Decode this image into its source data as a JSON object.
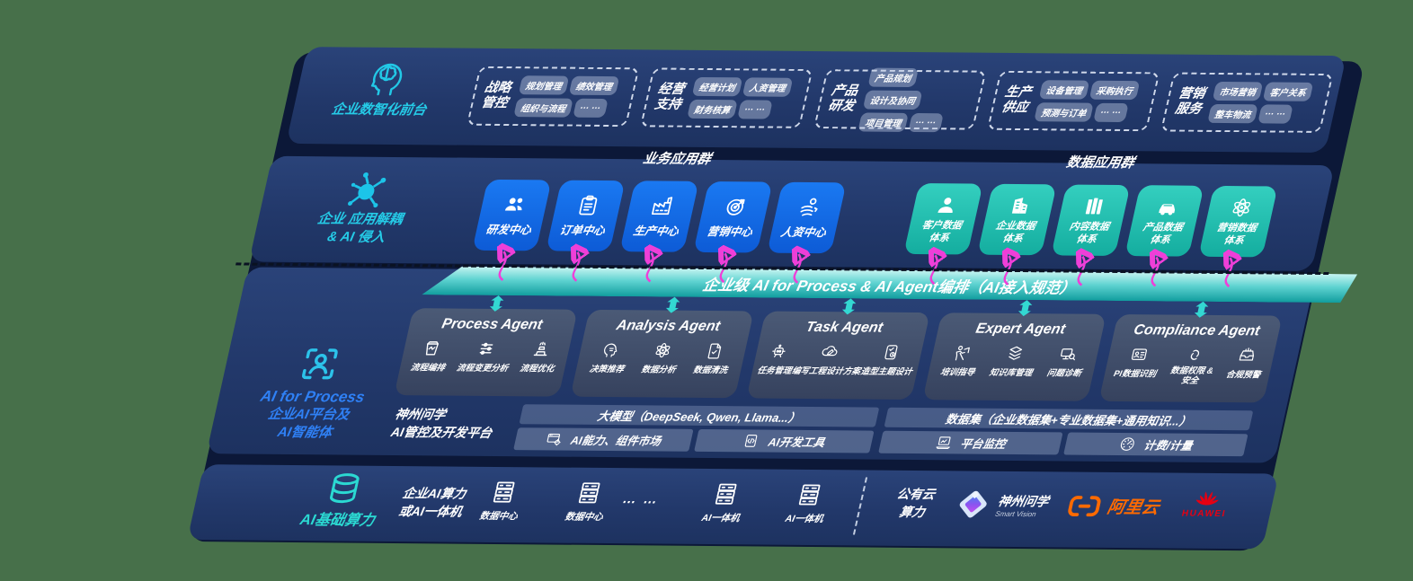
{
  "colors": {
    "canvas_background": "#47704a",
    "band_navy": "#22386a",
    "band_edge_dark": "#0c1838",
    "accent_cyan": "#25cbe7",
    "accent_blue": "#2f80f5",
    "accent_teal": "#2bd9d2",
    "blue_box": "#0f6be8",
    "teal_box": "#27c5b5",
    "banner_teal": "#14a5a4",
    "magenta_arrow": "#ee3fd8",
    "aliyun_orange": "#ff6a00",
    "huawei_red": "#e60012"
  },
  "front_office": {
    "label": "企业数智化前台",
    "icon": "head-brain-icon",
    "groups": [
      {
        "title": "战略管控",
        "chips": [
          "规划管理",
          "绩效管理",
          "组织与流程",
          "… …"
        ]
      },
      {
        "title": "经营支持",
        "chips": [
          "经营计划",
          "人资管理",
          "财务核算",
          "… …"
        ]
      },
      {
        "title": "产品研发",
        "chips": [
          "产品规划",
          "设计及协同",
          "项目管理",
          "… …"
        ]
      },
      {
        "title": "生产供应",
        "chips": [
          "设备管理",
          "采购执行",
          "预测与订单",
          "… …"
        ]
      },
      {
        "title": "营销服务",
        "chips": [
          "市场营销",
          "客户关系",
          "整车物流",
          "… …"
        ]
      }
    ]
  },
  "app_layer": {
    "label_line1": "企业 应用解耦",
    "label_line2": "& AI 侵入",
    "icon": "neuron-icon",
    "business_group": {
      "title": "业务应用群",
      "boxes": [
        {
          "label": "研发中心",
          "icon": "team-icon"
        },
        {
          "label": "订单中心",
          "icon": "clipboard-icon"
        },
        {
          "label": "生产中心",
          "icon": "factory-icon"
        },
        {
          "label": "营销中心",
          "icon": "target-icon"
        },
        {
          "label": "人资中心",
          "icon": "person-motion-icon"
        }
      ]
    },
    "data_group": {
      "title": "数据应用群",
      "boxes": [
        {
          "label": "客户数据体系",
          "icon": "user-icon"
        },
        {
          "label": "企业数据体系",
          "icon": "building-icon"
        },
        {
          "label": "内容数据体系",
          "icon": "books-icon"
        },
        {
          "label": "产品数据体系",
          "icon": "car-icon"
        },
        {
          "label": "营销数据体系",
          "icon": "atom-icon"
        }
      ]
    }
  },
  "ai_platform_layer": {
    "label_en": "AI for Process",
    "label_zh_line1": "企业AI平台及",
    "label_zh_line2": "AI智能体",
    "icon": "person-scan-icon",
    "banner": "企业级 AI for Process & AI Agent编排（AI接入规范）",
    "agents": [
      {
        "title": "Process Agent",
        "items": [
          {
            "label": "流程编排",
            "icon": "workflow-icon"
          },
          {
            "label": "流程变更分析",
            "icon": "sliders-icon"
          },
          {
            "label": "流程优化",
            "icon": "optimize-icon"
          }
        ]
      },
      {
        "title": "Analysis Agent",
        "items": [
          {
            "label": "决策推荐",
            "icon": "head-idea-icon"
          },
          {
            "label": "数据分析",
            "icon": "atom-icon"
          },
          {
            "label": "数据清洗",
            "icon": "doc-clean-icon"
          }
        ]
      },
      {
        "title": "Task Agent",
        "items": [
          {
            "label": "任务管理",
            "icon": "robot-icon"
          },
          {
            "label": "编写工程设计方案",
            "icon": "cloud-edit-icon"
          },
          {
            "label": "造型主题设计",
            "icon": "design-card-icon"
          }
        ]
      },
      {
        "title": "Expert Agent",
        "items": [
          {
            "label": "培训指导",
            "icon": "training-icon"
          },
          {
            "label": "知识库管理",
            "icon": "layers-icon"
          },
          {
            "label": "问题诊断",
            "icon": "diagnose-icon"
          }
        ]
      },
      {
        "title": "Compliance Agent",
        "items": [
          {
            "label": "PI数据识别",
            "icon": "id-card-icon"
          },
          {
            "label": "数据权限 & 安全",
            "icon": "permission-icon"
          },
          {
            "label": "合规预警",
            "icon": "alert-mail-icon"
          }
        ]
      }
    ],
    "platform": {
      "name_line1": "神州问学",
      "name_line2": "AI管控及开发平台",
      "model_bar": "大模型（DeepSeek, Qwen, Llama...）",
      "dataset_bar": "数据集（企业数据集+专业数据集+通用知识...）",
      "cells": [
        {
          "label": "AI能力、组件市场",
          "icon": "components-icon"
        },
        {
          "label": "AI开发工具",
          "icon": "devtools-icon"
        },
        {
          "label": "平台监控",
          "icon": "monitor-icon"
        },
        {
          "label": "计费/计量",
          "icon": "gauge-icon"
        }
      ]
    }
  },
  "infra_layer": {
    "label": "AI基础算力",
    "icon": "database-icon",
    "compute_line1": "企业AI算力",
    "compute_line2": "或AI一体机",
    "nodes": [
      {
        "label": "数据中心",
        "icon": "server-icon"
      },
      {
        "label": "数据中心",
        "icon": "server-icon"
      },
      {
        "label": "AI一体机",
        "icon": "server-icon"
      },
      {
        "label": "AI一体机",
        "icon": "server-icon"
      }
    ],
    "ellipsis": "… …",
    "cloud_line1": "公有云",
    "cloud_line2": "算力",
    "vendors": {
      "smartvision": {
        "name": "神州问学",
        "sub": "Smart Vision",
        "icon": "smartvision-logo"
      },
      "aliyun": {
        "name": "阿里云",
        "icon": "aliyun-logo"
      },
      "huawei": {
        "name": "HUAWEI",
        "icon": "huawei-logo"
      }
    }
  }
}
